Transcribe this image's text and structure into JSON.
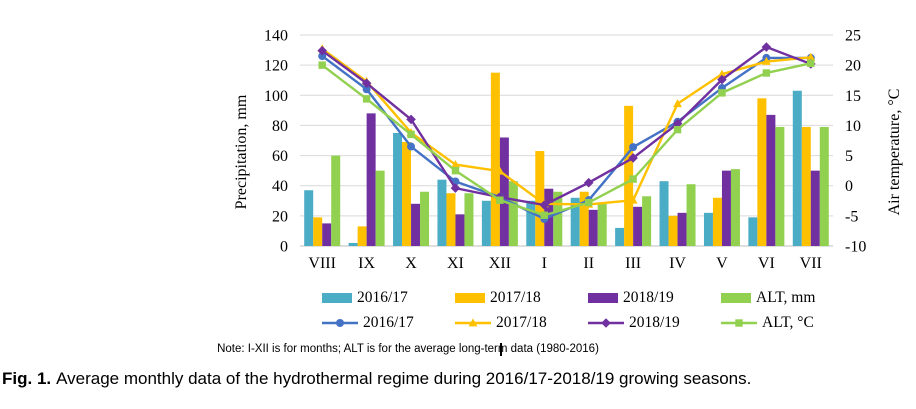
{
  "chart_data": {
    "type": "combo-bar-line",
    "categories": [
      "VIII",
      "IX",
      "X",
      "XI",
      "XII",
      "I",
      "II",
      "III",
      "IV",
      "V",
      "VI",
      "VII"
    ],
    "bar_series": [
      {
        "name": "2016/17",
        "color": "#4BACC6",
        "values": [
          37,
          2,
          75,
          44,
          30,
          30,
          32,
          12,
          43,
          22,
          19,
          103
        ]
      },
      {
        "name": "2017/18",
        "color": "#FFC000",
        "values": [
          19,
          13,
          69,
          35,
          115,
          63,
          36,
          93,
          20,
          32,
          98,
          79
        ]
      },
      {
        "name": "2018/19",
        "color": "#7030A0",
        "values": [
          15,
          88,
          28,
          21,
          72,
          38,
          24,
          26,
          22,
          50,
          87,
          50
        ]
      },
      {
        "name": "ALT, mm",
        "color": "#92D050",
        "values": [
          60,
          50,
          36,
          35,
          43,
          36,
          28,
          33,
          41,
          51,
          79,
          79
        ]
      }
    ],
    "line_series": [
      {
        "name": "2016/17",
        "color": "#4472C4",
        "marker": "circle",
        "values": [
          21.5,
          16.0,
          6.5,
          0.7,
          -1.9,
          -5.5,
          -2.4,
          6.4,
          10.6,
          16.2,
          21.2,
          21.2
        ]
      },
      {
        "name": "2017/18",
        "color": "#FFC000",
        "marker": "triangle",
        "values": [
          22.7,
          17.3,
          8.8,
          3.5,
          2.4,
          -3.0,
          -3.1,
          -2.4,
          13.6,
          18.5,
          20.6,
          21.3
        ]
      },
      {
        "name": "2018/19",
        "color": "#7030A0",
        "marker": "diamond",
        "values": [
          22.4,
          17.0,
          11.0,
          -0.4,
          -1.9,
          -3.2,
          0.5,
          4.6,
          10.3,
          17.6,
          23.0,
          20.2
        ]
      },
      {
        "name": "ALT, °C",
        "color": "#92D050",
        "marker": "square",
        "values": [
          20.0,
          14.4,
          8.5,
          2.5,
          -2.4,
          -4.9,
          -2.8,
          1.1,
          9.3,
          15.4,
          18.7,
          20.3
        ]
      }
    ],
    "left_axis": {
      "label": "Precipitation, mm",
      "min": 0,
      "max": 140,
      "ticks": [
        0,
        20,
        40,
        60,
        80,
        100,
        120,
        140
      ]
    },
    "right_axis": {
      "label": "Air temperature, °C",
      "min": -10,
      "max": 25,
      "ticks": [
        -10,
        -5,
        0,
        5,
        10,
        15,
        20,
        25
      ]
    },
    "grid": "horizontal",
    "legend_position": "bottom",
    "title": ""
  },
  "note": "Note: I-XII is for months; ALT is for the average long-term data (1980-2016)",
  "caption": {
    "prefix": "Fig. 1.",
    "text": "Average monthly data of the hydrothermal regime during 2016/17-2018/19 growing seasons."
  }
}
